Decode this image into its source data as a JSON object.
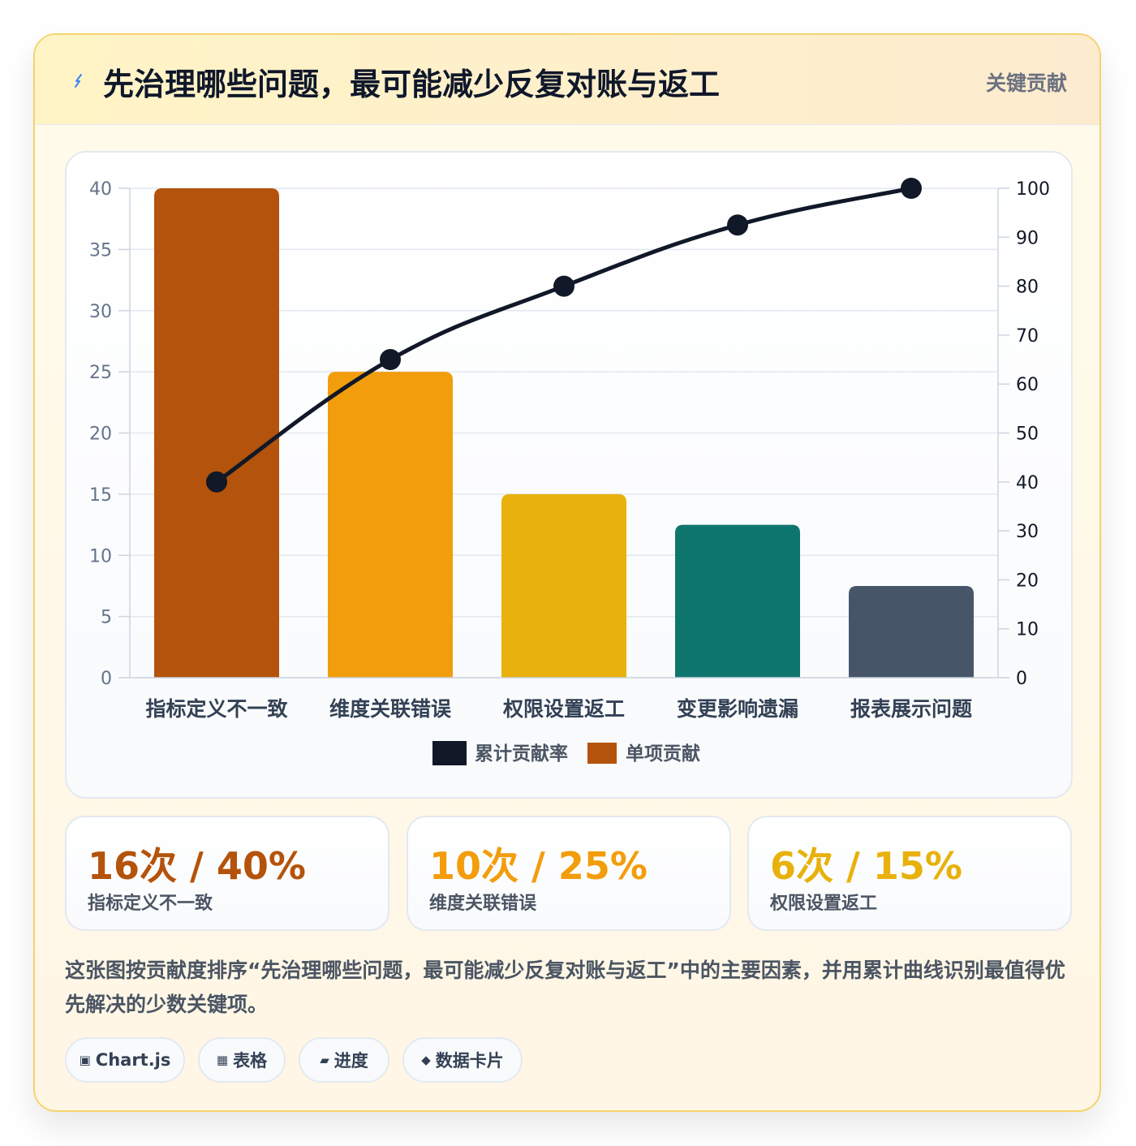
{
  "header": {
    "icon": "lightning-icon",
    "title": "先治理哪些问题，最可能减少反复对账与返工",
    "badge": "关键贡献"
  },
  "colors": {
    "bars": [
      "#b4530b",
      "#f29d0c",
      "#e8b10b",
      "#0f766e",
      "#475569"
    ],
    "line": "#111827",
    "grid": "#e2e8f0"
  },
  "chart_data": {
    "type": "bar",
    "categories": [
      "指标定义不一致",
      "维度关联错误",
      "权限设置返工",
      "变更影响遗漏",
      "报表展示问题"
    ],
    "series": [
      {
        "name": "单项贡献",
        "type": "bar",
        "axis": "left",
        "values": [
          40,
          25,
          15,
          12.5,
          7.5
        ]
      },
      {
        "name": "累计贡献率",
        "type": "line",
        "axis": "right",
        "values": [
          40,
          65,
          80,
          92.5,
          100
        ]
      }
    ],
    "y_left": {
      "min": 0,
      "max": 40,
      "step": 5
    },
    "y_right": {
      "min": 0,
      "max": 100,
      "step": 10
    },
    "legend": {
      "position": "bottom",
      "items": [
        "累计贡献率",
        "单项贡献"
      ]
    },
    "grid": true
  },
  "stats": [
    {
      "value": "16次 / 40%",
      "label": "指标定义不一致",
      "color": "#b4530b"
    },
    {
      "value": "10次 / 25%",
      "label": "维度关联错误",
      "color": "#f29d0c"
    },
    {
      "value": "6次 / 15%",
      "label": "权限设置返工",
      "color": "#e8b10b"
    }
  ],
  "description": "这张图按贡献度排序“先治理哪些问题，最可能减少反复对账与返工”中的主要因素，并用累计曲线识别最值得优先解决的少数关键项。",
  "tags": [
    {
      "icon": "▣",
      "label": "Chart.js"
    },
    {
      "icon": "▦",
      "label": "表格"
    },
    {
      "icon": "▰",
      "label": "进度"
    },
    {
      "icon": "◆",
      "label": "数据卡片"
    }
  ]
}
